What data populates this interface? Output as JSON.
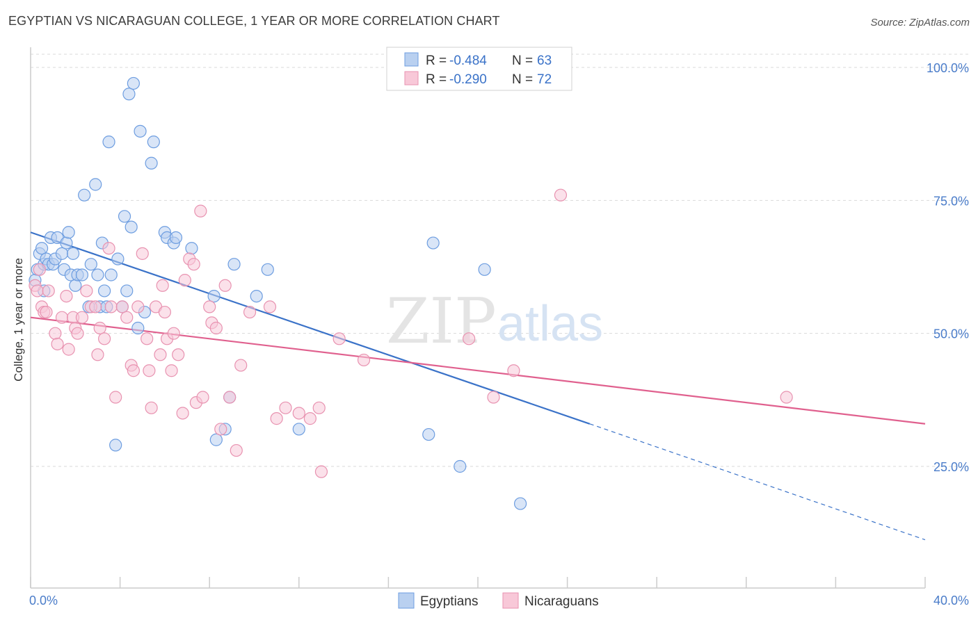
{
  "title": "EGYPTIAN VS NICARAGUAN COLLEGE, 1 YEAR OR MORE CORRELATION CHART",
  "source": "Source: ZipAtlas.com",
  "watermark": {
    "zip": "ZIP",
    "atlas": "atlas"
  },
  "chart_data": {
    "type": "scatter",
    "title": "EGYPTIAN VS NICARAGUAN COLLEGE, 1 YEAR OR MORE CORRELATION CHART",
    "xlabel": "",
    "ylabel": "College, 1 year or more",
    "xlim": [
      0,
      40
    ],
    "ylim": [
      0,
      105
    ],
    "x_tick_labels": [
      {
        "value": 0,
        "label": "0.0%"
      },
      {
        "value": 40,
        "label": "40.0%"
      }
    ],
    "y_tick_labels": [
      {
        "value": 25,
        "label": "25.0%"
      },
      {
        "value": 50,
        "label": "50.0%"
      },
      {
        "value": 75,
        "label": "75.0%"
      },
      {
        "value": 100,
        "label": "100.0%"
      }
    ],
    "grid": true,
    "legend_position": "top-center",
    "stats_legend": [
      {
        "series": "Egyptians",
        "r_label": "R =",
        "r_value": "-0.484",
        "n_label": "N =",
        "n_value": "63"
      },
      {
        "series": "Nicaraguans",
        "r_label": "R =",
        "r_value": "-0.290",
        "n_label": "N =",
        "n_value": "72"
      }
    ],
    "series": [
      {
        "name": "Egyptians",
        "color": "#6d9de0",
        "fill": "#b9d0f0",
        "line_color": "#3a72c8",
        "trend": {
          "x0": 0,
          "y0": 69,
          "x1": 25,
          "y1": 33,
          "dash_to_x": 40,
          "dash_to_y": 11.2
        },
        "points": [
          [
            0.3,
            62
          ],
          [
            0.4,
            65
          ],
          [
            0.5,
            66
          ],
          [
            0.6,
            63
          ],
          [
            0.7,
            64
          ],
          [
            0.8,
            63
          ],
          [
            0.9,
            68
          ],
          [
            1.0,
            63
          ],
          [
            1.1,
            64
          ],
          [
            1.2,
            68
          ],
          [
            1.4,
            65
          ],
          [
            1.5,
            62
          ],
          [
            1.6,
            67
          ],
          [
            1.7,
            69
          ],
          [
            1.8,
            61
          ],
          [
            1.9,
            65
          ],
          [
            2.0,
            59
          ],
          [
            2.1,
            61
          ],
          [
            2.3,
            61
          ],
          [
            2.4,
            76
          ],
          [
            2.6,
            55
          ],
          [
            2.7,
            63
          ],
          [
            2.9,
            78
          ],
          [
            3.0,
            61
          ],
          [
            3.1,
            55
          ],
          [
            3.2,
            67
          ],
          [
            3.3,
            58
          ],
          [
            3.4,
            55
          ],
          [
            3.5,
            86
          ],
          [
            3.6,
            61
          ],
          [
            3.8,
            29
          ],
          [
            3.9,
            64
          ],
          [
            4.1,
            55
          ],
          [
            4.2,
            72
          ],
          [
            4.3,
            58
          ],
          [
            4.4,
            95
          ],
          [
            4.5,
            70
          ],
          [
            4.6,
            97
          ],
          [
            4.8,
            51
          ],
          [
            4.9,
            88
          ],
          [
            5.1,
            54
          ],
          [
            5.4,
            82
          ],
          [
            5.5,
            86
          ],
          [
            6.0,
            69
          ],
          [
            6.1,
            68
          ],
          [
            6.4,
            67
          ],
          [
            6.5,
            68
          ],
          [
            7.2,
            66
          ],
          [
            8.2,
            57
          ],
          [
            8.3,
            30
          ],
          [
            8.7,
            32
          ],
          [
            8.9,
            38
          ],
          [
            9.1,
            63
          ],
          [
            10.1,
            57
          ],
          [
            10.6,
            62
          ],
          [
            12.0,
            32
          ],
          [
            17.8,
            31
          ],
          [
            18.0,
            67
          ],
          [
            19.2,
            25
          ],
          [
            20.3,
            62
          ],
          [
            21.9,
            18
          ],
          [
            0.2,
            60
          ],
          [
            0.6,
            58
          ]
        ]
      },
      {
        "name": "Nicaraguans",
        "color": "#e892b0",
        "fill": "#f8c8d8",
        "line_color": "#e0608e",
        "trend": {
          "x0": 0,
          "y0": 53,
          "x1": 40,
          "y1": 33
        },
        "points": [
          [
            0.2,
            59
          ],
          [
            0.3,
            58
          ],
          [
            0.5,
            55
          ],
          [
            0.6,
            54
          ],
          [
            0.7,
            54
          ],
          [
            0.8,
            58
          ],
          [
            1.1,
            50
          ],
          [
            1.2,
            48
          ],
          [
            1.4,
            53
          ],
          [
            1.6,
            57
          ],
          [
            1.7,
            47
          ],
          [
            1.9,
            53
          ],
          [
            2.0,
            51
          ],
          [
            2.1,
            50
          ],
          [
            2.3,
            53
          ],
          [
            2.5,
            58
          ],
          [
            2.7,
            55
          ],
          [
            2.9,
            55
          ],
          [
            3.0,
            46
          ],
          [
            3.1,
            51
          ],
          [
            3.3,
            49
          ],
          [
            3.5,
            66
          ],
          [
            3.6,
            55
          ],
          [
            3.8,
            38
          ],
          [
            4.1,
            55
          ],
          [
            4.3,
            53
          ],
          [
            4.5,
            44
          ],
          [
            4.6,
            43
          ],
          [
            4.8,
            55
          ],
          [
            5.0,
            65
          ],
          [
            5.2,
            49
          ],
          [
            5.3,
            43
          ],
          [
            5.4,
            36
          ],
          [
            5.6,
            55
          ],
          [
            5.8,
            46
          ],
          [
            5.9,
            59
          ],
          [
            6.0,
            54
          ],
          [
            6.1,
            49
          ],
          [
            6.3,
            43
          ],
          [
            6.4,
            50
          ],
          [
            6.6,
            46
          ],
          [
            6.8,
            35
          ],
          [
            6.9,
            60
          ],
          [
            7.1,
            64
          ],
          [
            7.3,
            63
          ],
          [
            7.4,
            37
          ],
          [
            7.6,
            73
          ],
          [
            7.7,
            38
          ],
          [
            8.0,
            55
          ],
          [
            8.1,
            52
          ],
          [
            8.3,
            51
          ],
          [
            8.5,
            32
          ],
          [
            8.7,
            59
          ],
          [
            8.9,
            38
          ],
          [
            9.2,
            28
          ],
          [
            9.4,
            44
          ],
          [
            9.8,
            54
          ],
          [
            10.7,
            55
          ],
          [
            11.0,
            34
          ],
          [
            11.4,
            36
          ],
          [
            12.0,
            35
          ],
          [
            12.5,
            34
          ],
          [
            12.9,
            36
          ],
          [
            13.0,
            24
          ],
          [
            13.8,
            49
          ],
          [
            14.9,
            45
          ],
          [
            19.6,
            49
          ],
          [
            20.7,
            38
          ],
          [
            21.6,
            43
          ],
          [
            23.7,
            76
          ],
          [
            33.8,
            38
          ],
          [
            0.4,
            62
          ]
        ]
      }
    ]
  },
  "bottom_legend": [
    {
      "label": "Egyptians"
    },
    {
      "label": "Nicaraguans"
    }
  ]
}
